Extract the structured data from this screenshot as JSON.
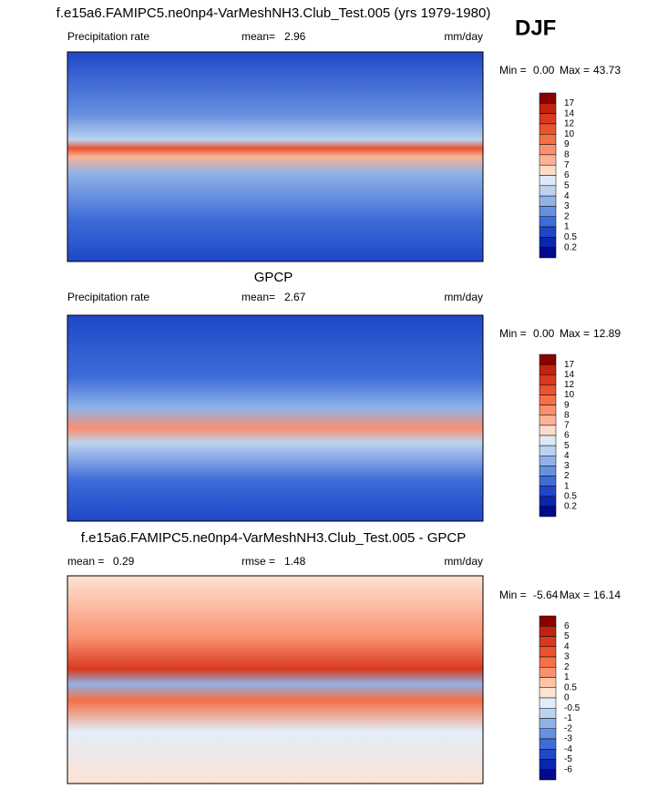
{
  "season": "DJF",
  "panels": [
    {
      "title": "f.e15a6.FAMIPC5.ne0np4-VarMeshNH3.Club_Test.005 (yrs 1979-1980)",
      "left_label": "Precipitation rate",
      "stat_label": "mean=",
      "stat_value": "2.96",
      "units": "mm/day",
      "min_label": "Min =",
      "min": "0.00",
      "max_label": "Max =",
      "max": "43.73",
      "levels": [
        17,
        14,
        12,
        10,
        9,
        8,
        7,
        6,
        5,
        4,
        3,
        2,
        1,
        0.5,
        0.2
      ],
      "colors": [
        "#8c0000",
        "#c0230f",
        "#d8391f",
        "#e9532f",
        "#f47045",
        "#f99070",
        "#fbb296",
        "#fcdcc8",
        "#dde9f7",
        "#bcd3f0",
        "#8fb3e8",
        "#6790e0",
        "#3e6cd8",
        "#1f47c8",
        "#0a26b0",
        "#000a8a"
      ]
    },
    {
      "title": "GPCP",
      "left_label": "Precipitation rate",
      "stat_label": "mean=",
      "stat_value": "2.67",
      "units": "mm/day",
      "min_label": "Min =",
      "min": "0.00",
      "max_label": "Max =",
      "max": "12.89",
      "levels": [
        17,
        14,
        12,
        10,
        9,
        8,
        7,
        6,
        5,
        4,
        3,
        2,
        1,
        0.5,
        0.2
      ],
      "colors": [
        "#8c0000",
        "#c0230f",
        "#d8391f",
        "#e9532f",
        "#f47045",
        "#f99070",
        "#fbb296",
        "#fcdcc8",
        "#dde9f7",
        "#bcd3f0",
        "#8fb3e8",
        "#6790e0",
        "#3e6cd8",
        "#1f47c8",
        "#0a26b0",
        "#000a8a"
      ]
    },
    {
      "title": "f.e15a6.FAMIPC5.ne0np4-VarMeshNH3.Club_Test.005 - GPCP",
      "left_label": "mean =",
      "left_value": "0.29",
      "stat_label": "rmse =",
      "stat_value": "1.48",
      "units": "mm/day",
      "min_label": "Min =",
      "min": "-5.64",
      "max_label": "Max =",
      "max": "16.14",
      "levels": [
        6,
        5,
        4,
        3,
        2,
        1,
        0.5,
        0,
        -0.5,
        -1,
        -2,
        -3,
        -4,
        -5,
        -6
      ],
      "colors": [
        "#8c0000",
        "#c0230f",
        "#d8391f",
        "#e9532f",
        "#f47045",
        "#f99070",
        "#fcc4a8",
        "#fde3d3",
        "#e3edf9",
        "#bcd3f0",
        "#8fb3e8",
        "#6790e0",
        "#3e6cd8",
        "#1f47c8",
        "#0a26b0",
        "#000a8a"
      ]
    }
  ]
}
